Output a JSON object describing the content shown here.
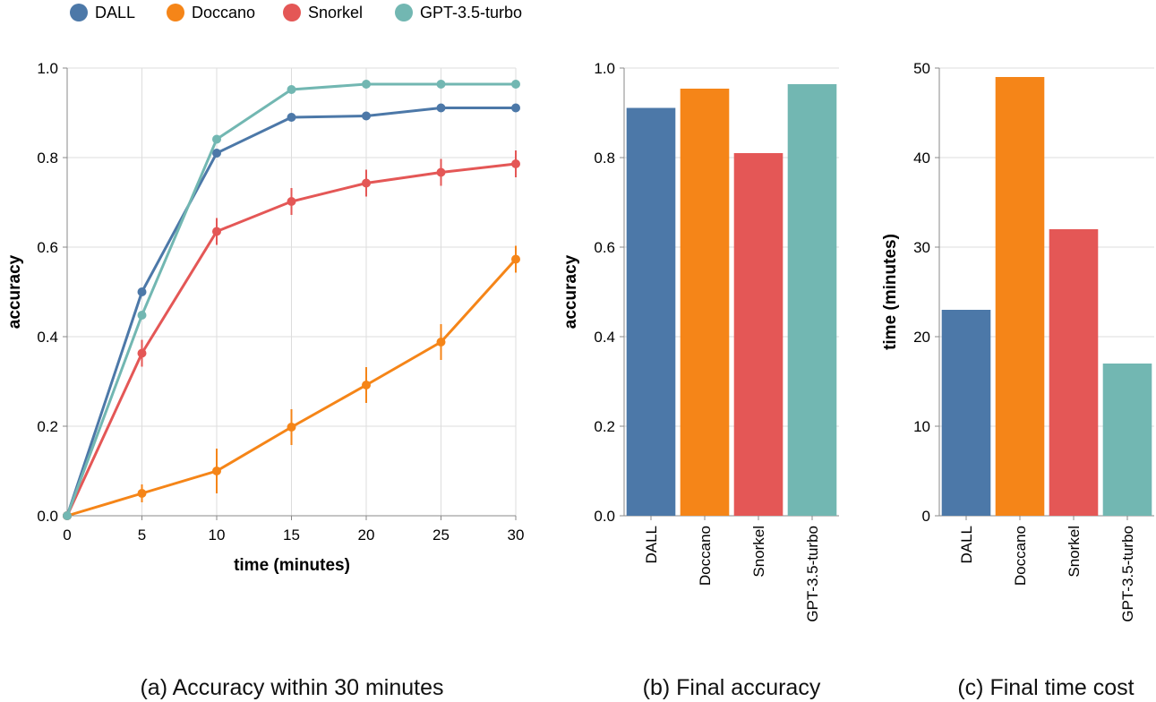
{
  "legend": {
    "items": [
      {
        "label": "DALL",
        "color": "#4c78a8"
      },
      {
        "label": "Doccano",
        "color": "#f58518"
      },
      {
        "label": "Snorkel",
        "color": "#e45756"
      },
      {
        "label": "GPT-3.5-turbo",
        "color": "#72b7b2"
      }
    ]
  },
  "captions": {
    "a": "(a) Accuracy within 30 minutes",
    "b": "(b) Final accuracy",
    "c": "(c) Final time cost"
  },
  "chart_data": [
    {
      "type": "line",
      "xlabel": "time (minutes)",
      "ylabel": "accuracy",
      "x": [
        0,
        5,
        10,
        15,
        20,
        25,
        30
      ],
      "xticks": [
        "0",
        "5",
        "10",
        "15",
        "20",
        "25",
        "30"
      ],
      "xlim": [
        0,
        30
      ],
      "ylim": [
        0,
        1
      ],
      "yticks": [
        "0.0",
        "0.2",
        "0.4",
        "0.6",
        "0.8",
        "1.0"
      ],
      "grid": true,
      "series": [
        {
          "name": "DALL",
          "color": "#4c78a8",
          "values": [
            0.0,
            0.5,
            0.81,
            0.89,
            0.893,
            0.911,
            0.911
          ],
          "error": [
            0,
            0,
            0,
            0,
            0,
            0,
            0
          ]
        },
        {
          "name": "Doccano",
          "color": "#f58518",
          "values": [
            0.0,
            0.05,
            0.1,
            0.198,
            0.292,
            0.388,
            0.573
          ],
          "error": [
            0,
            0.02,
            0.05,
            0.04,
            0.04,
            0.04,
            0.03
          ]
        },
        {
          "name": "Snorkel",
          "color": "#e45756",
          "values": [
            0.0,
            0.363,
            0.635,
            0.702,
            0.743,
            0.767,
            0.786
          ],
          "error": [
            0,
            0.03,
            0.03,
            0.03,
            0.03,
            0.03,
            0.03
          ]
        },
        {
          "name": "GPT-3.5-turbo",
          "color": "#72b7b2",
          "values": [
            0.0,
            0.448,
            0.841,
            0.952,
            0.964,
            0.964,
            0.964
          ],
          "error": [
            0,
            0,
            0,
            0,
            0,
            0,
            0
          ]
        }
      ]
    },
    {
      "type": "bar",
      "xlabel": "",
      "ylabel": "accuracy",
      "categories": [
        "DALL",
        "Doccano",
        "Snorkel",
        "GPT-3.5-turbo"
      ],
      "values": [
        0.911,
        0.954,
        0.81,
        0.964
      ],
      "colors": [
        "#4c78a8",
        "#f58518",
        "#e45756",
        "#72b7b2"
      ],
      "ylim": [
        0,
        1
      ],
      "yticks": [
        "0.0",
        "0.2",
        "0.4",
        "0.6",
        "0.8",
        "1.0"
      ],
      "grid": true
    },
    {
      "type": "bar",
      "xlabel": "",
      "ylabel": "time (minutes)",
      "categories": [
        "DALL",
        "Doccano",
        "Snorkel",
        "GPT-3.5-turbo"
      ],
      "values": [
        23,
        49,
        32,
        17
      ],
      "colors": [
        "#4c78a8",
        "#f58518",
        "#e45756",
        "#72b7b2"
      ],
      "ylim": [
        0,
        50
      ],
      "yticks": [
        "0",
        "10",
        "20",
        "30",
        "40",
        "50"
      ],
      "grid": true
    }
  ]
}
